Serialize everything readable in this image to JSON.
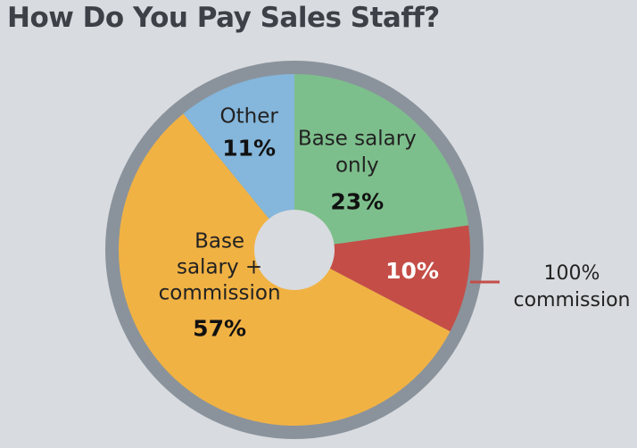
{
  "chart_data": {
    "type": "pie",
    "title": "How Do You Pay Sales Staff?",
    "slices": [
      {
        "label": [
          "Base salary",
          "only"
        ],
        "value": 23,
        "value_label": "23%",
        "color": "#7dbf8c",
        "pct_color": "#111111"
      },
      {
        "label": [],
        "value": 10,
        "value_label": "10%",
        "color": "#c44e47",
        "pct_color": "#ffffff",
        "callout": [
          "100%",
          "commission"
        ]
      },
      {
        "label": [
          "Base",
          "salary +",
          "commission"
        ],
        "value": 57,
        "value_label": "57%",
        "color": "#f1b244",
        "pct_color": "#111111"
      },
      {
        "label": [
          "Other"
        ],
        "value": 11,
        "value_label": "11%",
        "color": "#85b6db",
        "pct_color": "#111111"
      }
    ],
    "legend": "none",
    "ring_color": "#8a939c",
    "hole_color": "#d8dbdf"
  }
}
